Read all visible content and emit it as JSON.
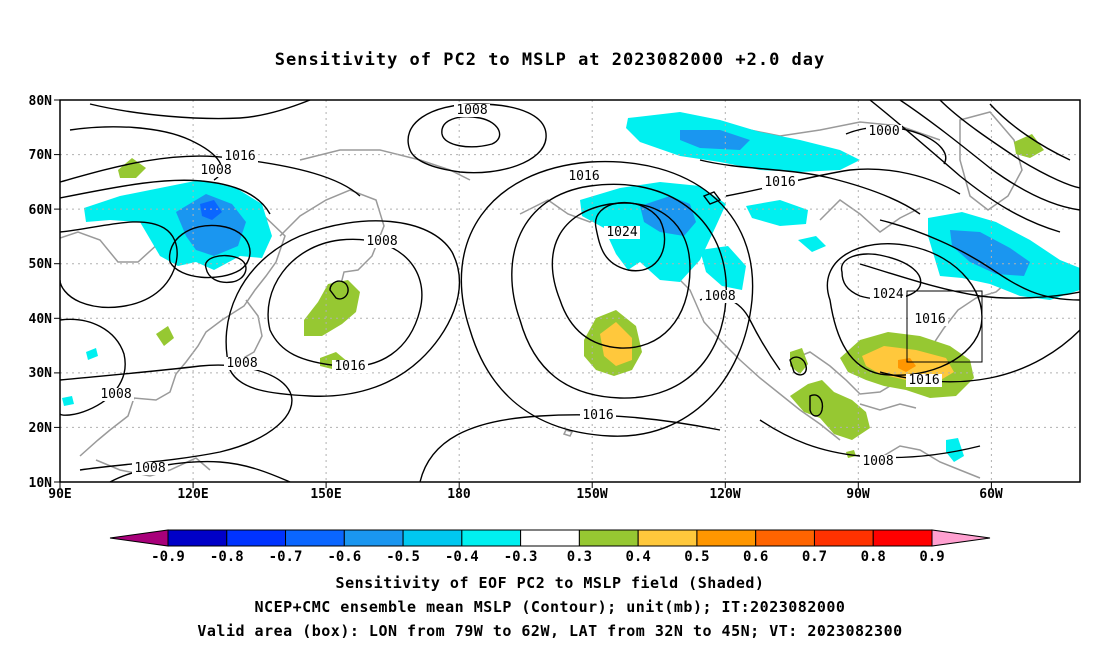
{
  "title": "Sensitivity of PC2 to MSLP at 2023082000 +2.0 day",
  "axes": {
    "lat_labels": [
      "80N",
      "70N",
      "60N",
      "50N",
      "40N",
      "30N",
      "20N",
      "10N"
    ],
    "lon_labels": [
      "90E",
      "120E",
      "150E",
      "180",
      "150W",
      "120W",
      "90W",
      "60W"
    ],
    "lon_range": [
      "90E",
      "40W"
    ],
    "lat_range": [
      "10N",
      "80N"
    ],
    "grid": "dotted"
  },
  "contour_labels": [
    "1008",
    "1016",
    "1008",
    "1008",
    "1008",
    "1016",
    "1024",
    "1016",
    "1008",
    "1000",
    "1016",
    "1024",
    "1016",
    "1016",
    "1008",
    "1008",
    "1008",
    "1016"
  ],
  "colorbar": {
    "colors": [
      "#a8007a",
      "#0000c8",
      "#0033ff",
      "#0a66ff",
      "#1a96f0",
      "#00c8f0",
      "#00f0f0",
      "#ffffff",
      "#96c832",
      "#ffc83c",
      "#ff9600",
      "#ff6400",
      "#ff3200",
      "#ff0000",
      "#ffa0d0"
    ],
    "labels": [
      "-0.9",
      "-0.8",
      "-0.7",
      "-0.6",
      "-0.5",
      "-0.4",
      "-0.3",
      "0.3",
      "0.4",
      "0.5",
      "0.6",
      "0.7",
      "0.8",
      "0.9"
    ]
  },
  "captions": [
    "Sensitivity of EOF PC2 to MSLP field (Shaded)",
    "NCEP+CMC ensemble mean MSLP (Contour); unit(mb); IT:2023082000",
    "Valid area (box): LON from 79W to 62W, LAT from 32N to 45N; VT: 2023082300"
  ]
}
